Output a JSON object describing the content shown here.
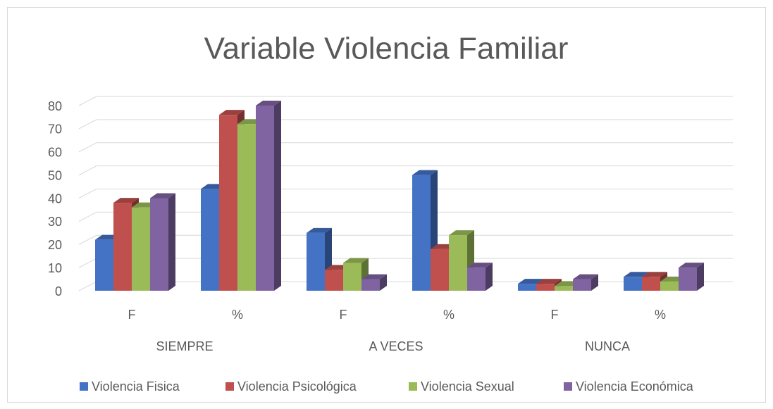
{
  "chart_data": {
    "type": "bar3d",
    "title": "Variable Violencia Familiar",
    "categories": [
      "F",
      "%",
      "F",
      "%",
      "F",
      "%"
    ],
    "groups": [
      "SIEMPRE",
      "A VECES",
      "NUNCA"
    ],
    "series": [
      {
        "name": "Violencia Fisica",
        "color": "#4472c4",
        "values": [
          22,
          44,
          25,
          50,
          3,
          6
        ]
      },
      {
        "name": "Violencia Psicológica",
        "color": "#c0504d",
        "values": [
          38,
          76,
          9,
          18,
          3,
          6
        ]
      },
      {
        "name": "Violencia Sexual",
        "color": "#9bbb59",
        "values": [
          36,
          72,
          12,
          24,
          2,
          4
        ]
      },
      {
        "name": "Violencia Económica",
        "color": "#8064a2",
        "values": [
          40,
          80,
          5,
          10,
          5,
          10
        ]
      }
    ],
    "ylim": [
      0,
      80
    ],
    "yticks": [
      0,
      10,
      20,
      30,
      40,
      50,
      60,
      70,
      80
    ],
    "grid": true,
    "legend": "bottom"
  }
}
